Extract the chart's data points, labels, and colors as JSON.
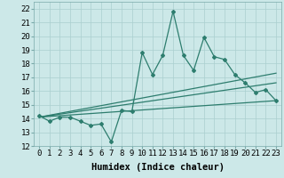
{
  "xlabel": "Humidex (Indice chaleur)",
  "xlim": [
    -0.5,
    23.5
  ],
  "ylim": [
    12,
    22.5
  ],
  "yticks": [
    12,
    13,
    14,
    15,
    16,
    17,
    18,
    19,
    20,
    21,
    22
  ],
  "xticks": [
    0,
    1,
    2,
    3,
    4,
    5,
    6,
    7,
    8,
    9,
    10,
    11,
    12,
    13,
    14,
    15,
    16,
    17,
    18,
    19,
    20,
    21,
    22,
    23
  ],
  "xtick_labels": [
    "0",
    "1",
    "2",
    "3",
    "4",
    "5",
    "6",
    "7",
    "8",
    "9",
    "10",
    "11",
    "12",
    "13",
    "14",
    "15",
    "16",
    "17",
    "18",
    "19",
    "20",
    "21",
    "22",
    "23"
  ],
  "main_line_x": [
    0,
    1,
    2,
    3,
    4,
    5,
    6,
    7,
    8,
    9,
    10,
    11,
    12,
    13,
    14,
    15,
    16,
    17,
    18,
    19,
    20,
    21,
    22,
    23
  ],
  "main_line_y": [
    14.2,
    13.8,
    14.1,
    14.1,
    13.8,
    13.5,
    13.6,
    12.3,
    14.6,
    14.5,
    18.8,
    17.2,
    18.6,
    21.8,
    18.6,
    17.5,
    19.9,
    18.5,
    18.3,
    17.2,
    16.6,
    15.9,
    16.1,
    15.3
  ],
  "trend1_x": [
    0,
    23
  ],
  "trend1_y": [
    14.1,
    17.3
  ],
  "trend2_x": [
    0,
    23
  ],
  "trend2_y": [
    14.1,
    16.6
  ],
  "trend3_x": [
    0,
    23
  ],
  "trend3_y": [
    14.1,
    15.3
  ],
  "line_color": "#2d7d6e",
  "bg_color": "#cce8e8",
  "grid_color": "#aacfcf",
  "tick_fontsize": 6.5,
  "xlabel_fontsize": 7.5
}
